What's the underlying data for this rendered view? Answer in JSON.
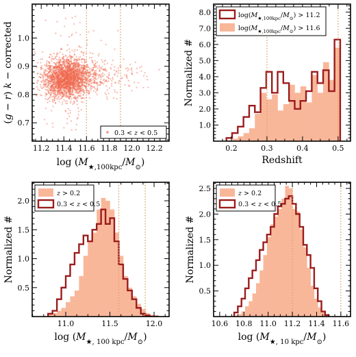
{
  "colors": {
    "scatter_points": "#ef6a4f",
    "fill_hist": "#f9b79a",
    "step_hist": "#9b1c1c",
    "reference_line": "#d9a36a"
  },
  "chart_data": [
    {
      "id": "panel-a",
      "type": "scatter",
      "xlabel": "log (M★,100kpc/M⊙)",
      "ylabel": "(g − r)  k − corrected",
      "xlim": [
        11.12,
        12.33
      ],
      "ylim": [
        0.635,
        1.12
      ],
      "xticks": [
        11.2,
        11.4,
        11.6,
        11.8,
        12.0,
        12.2
      ],
      "xtick_labels": [
        "11.2",
        "11.4",
        "11.6",
        "11.8",
        "12.0",
        "12.2"
      ],
      "yticks": [
        0.7,
        0.8,
        0.9,
        1.0
      ],
      "ytick_labels": [
        "0.7",
        "0.8",
        "0.9",
        "1.0"
      ],
      "vlines": [
        11.6,
        11.9
      ],
      "legend": {
        "position": "lower right",
        "entries": [
          "0.3 < z < 0.5"
        ]
      },
      "distribution": {
        "n_points": 2600,
        "x_peak": 11.42,
        "x_tail_to": 12.25,
        "y_center": 0.858,
        "y_spread": 0.035,
        "y_range": [
          0.67,
          1.08
        ]
      }
    },
    {
      "id": "panel-b",
      "type": "histogram",
      "xlabel": "Redshift",
      "ylabel": "Normalized #",
      "xlim": [
        0.15,
        0.535
      ],
      "ylim": [
        0,
        8.5
      ],
      "xticks": [
        0.2,
        0.3,
        0.4,
        0.5
      ],
      "xtick_labels": [
        "0.2",
        "0.3",
        "0.4",
        "0.5"
      ],
      "yticks": [
        1,
        2,
        3,
        4,
        5,
        6,
        7,
        8
      ],
      "ytick_labels": [
        "1.0",
        "2.0",
        "3.0",
        "4.0",
        "5.0",
        "6.0",
        "7.0",
        "8.0"
      ],
      "vlines": [
        0.3,
        0.5
      ],
      "legend": {
        "position": "top-left",
        "entries": [
          "log(M★,100kpc/M⊙) > 11.2",
          "log(M★,100kpc/M⊙) > 11.6"
        ]
      },
      "bin_edges": [
        0.186,
        0.202,
        0.218,
        0.234,
        0.25,
        0.266,
        0.282,
        0.298,
        0.314,
        0.33,
        0.346,
        0.362,
        0.378,
        0.394,
        0.41,
        0.426,
        0.442,
        0.458,
        0.474,
        0.49,
        0.506
      ],
      "series": [
        {
          "name": "log(M★,100kpc/M⊙) > 11.2",
          "style": "filled",
          "values": [
            0.05,
            0.15,
            0.3,
            0.5,
            0.8,
            1.7,
            3.0,
            2.6,
            2.9,
            1.9,
            2.3,
            3.5,
            3.0,
            3.4,
            2.4,
            4.1,
            3.0,
            4.9,
            3.8,
            5.8
          ]
        },
        {
          "name": "log(M★,100kpc/M⊙) > 11.6",
          "style": "step",
          "values": [
            0.2,
            0.5,
            0.9,
            1.5,
            2.2,
            1.8,
            3.3,
            4.3,
            3.0,
            4.3,
            3.6,
            2.5,
            2.0,
            2.5,
            3.1,
            4.3,
            3.6,
            4.4,
            3.1,
            6.3
          ]
        }
      ]
    },
    {
      "id": "panel-c",
      "type": "histogram",
      "xlabel": "log (M★, 100 kpc/M⊙)",
      "ylabel": "Normalized #",
      "xlim": [
        10.62,
        12.17
      ],
      "ylim": [
        0,
        2.32
      ],
      "xticks": [
        11.0,
        11.5,
        12.0
      ],
      "xtick_labels": [
        "11.0",
        "11.5",
        "12.0"
      ],
      "yticks": [
        0.5,
        1.0,
        1.5,
        2.0
      ],
      "ytick_labels": [
        "0.5",
        "1.0",
        "1.5",
        "2.0"
      ],
      "vlines": [
        11.6,
        11.9
      ],
      "legend": {
        "position": "top-left",
        "entries": [
          "z > 0.2",
          "0.3 < z < 0.5"
        ]
      },
      "bin_edges": [
        10.8,
        10.85,
        10.9,
        10.95,
        11.0,
        11.05,
        11.1,
        11.15,
        11.2,
        11.25,
        11.3,
        11.35,
        11.4,
        11.45,
        11.5,
        11.55,
        11.6,
        11.65,
        11.7,
        11.75,
        11.8,
        11.85,
        11.9,
        11.95,
        12.0,
        12.05
      ],
      "series": [
        {
          "name": "z > 0.2",
          "style": "filled",
          "values": [
            0.04,
            0.06,
            0.1,
            0.15,
            0.25,
            0.35,
            0.45,
            0.7,
            1.05,
            1.3,
            1.45,
            1.85,
            2.05,
            2.0,
            1.85,
            1.45,
            1.05,
            0.7,
            0.5,
            0.35,
            0.22,
            0.13,
            0.06,
            0.03,
            0.02
          ]
        },
        {
          "name": "0.3 < z < 0.5",
          "style": "step",
          "values": [
            0.05,
            0.1,
            0.3,
            0.5,
            0.7,
            0.9,
            1.1,
            1.25,
            1.4,
            1.3,
            1.5,
            1.6,
            1.85,
            1.6,
            1.7,
            1.3,
            0.9,
            0.65,
            0.45,
            0.3,
            0.15,
            0.05,
            0.02,
            0.0,
            0.0
          ]
        }
      ]
    },
    {
      "id": "panel-d",
      "type": "histogram",
      "xlabel": "log (M★, 10 kpc/M⊙)",
      "ylabel": "Normalized #",
      "xlim": [
        10.55,
        11.68
      ],
      "ylim": [
        0,
        2.62
      ],
      "xticks": [
        10.6,
        10.8,
        11.0,
        11.2,
        11.4,
        11.6
      ],
      "xtick_labels": [
        "10.6",
        "10.8",
        "11.0",
        "11.2",
        "11.4",
        "11.6"
      ],
      "yticks": [
        0.5,
        1.0,
        1.5,
        2.0,
        2.5
      ],
      "ytick_labels": [
        "0.5",
        "1.0",
        "1.5",
        "2.0",
        "2.5"
      ],
      "vlines": [
        11.2,
        11.6
      ],
      "legend": {
        "position": "top-left",
        "entries": [
          "z > 0.2",
          "0.3 < z < 0.5"
        ]
      },
      "bin_edges": [
        10.72,
        10.75,
        10.78,
        10.81,
        10.84,
        10.87,
        10.9,
        10.93,
        10.96,
        10.99,
        11.02,
        11.05,
        11.08,
        11.11,
        11.14,
        11.17,
        11.2,
        11.23,
        11.26,
        11.29,
        11.32,
        11.35,
        11.38,
        11.41,
        11.44,
        11.47,
        11.5
      ],
      "series": [
        {
          "name": "z > 0.2",
          "style": "filled",
          "values": [
            0.02,
            0.05,
            0.1,
            0.2,
            0.3,
            0.45,
            0.65,
            0.9,
            1.2,
            1.55,
            1.8,
            1.95,
            2.1,
            2.3,
            2.55,
            2.5,
            2.1,
            2.05,
            1.7,
            1.35,
            0.95,
            0.6,
            0.35,
            0.18,
            0.08,
            0.03
          ]
        },
        {
          "name": "0.3 < z < 0.5",
          "style": "step",
          "values": [
            0.08,
            0.2,
            0.35,
            0.55,
            0.75,
            0.9,
            1.1,
            1.3,
            1.45,
            1.6,
            1.75,
            2.0,
            2.15,
            2.2,
            2.3,
            2.35,
            2.2,
            2.0,
            1.75,
            1.4,
            1.2,
            0.95,
            0.55,
            0.3,
            0.1,
            0.03
          ]
        }
      ]
    }
  ]
}
